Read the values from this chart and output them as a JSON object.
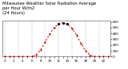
{
  "title": "Milwaukee Weather Solar Radiation Average\nper Hour W/m2\n(24 Hours)",
  "hours": [
    0,
    1,
    2,
    3,
    4,
    5,
    6,
    7,
    8,
    9,
    10,
    11,
    12,
    13,
    14,
    15,
    16,
    17,
    18,
    19,
    20,
    21,
    22,
    23
  ],
  "values": [
    0,
    0,
    0,
    0,
    0,
    0,
    2,
    30,
    120,
    250,
    390,
    500,
    560,
    580,
    560,
    490,
    370,
    230,
    100,
    25,
    2,
    0,
    0,
    0
  ],
  "line_color": "#cc0000",
  "dot_color": "#000000",
  "background_color": "#ffffff",
  "grid_color": "#999999",
  "ylim": [
    0,
    620
  ],
  "yticks": [
    0,
    100,
    200,
    300,
    400,
    500,
    600
  ],
  "title_fontsize": 3.8,
  "tick_fontsize": 3.0,
  "line_width": 0.7,
  "marker_size": 1.2,
  "peak_threshold": 540
}
